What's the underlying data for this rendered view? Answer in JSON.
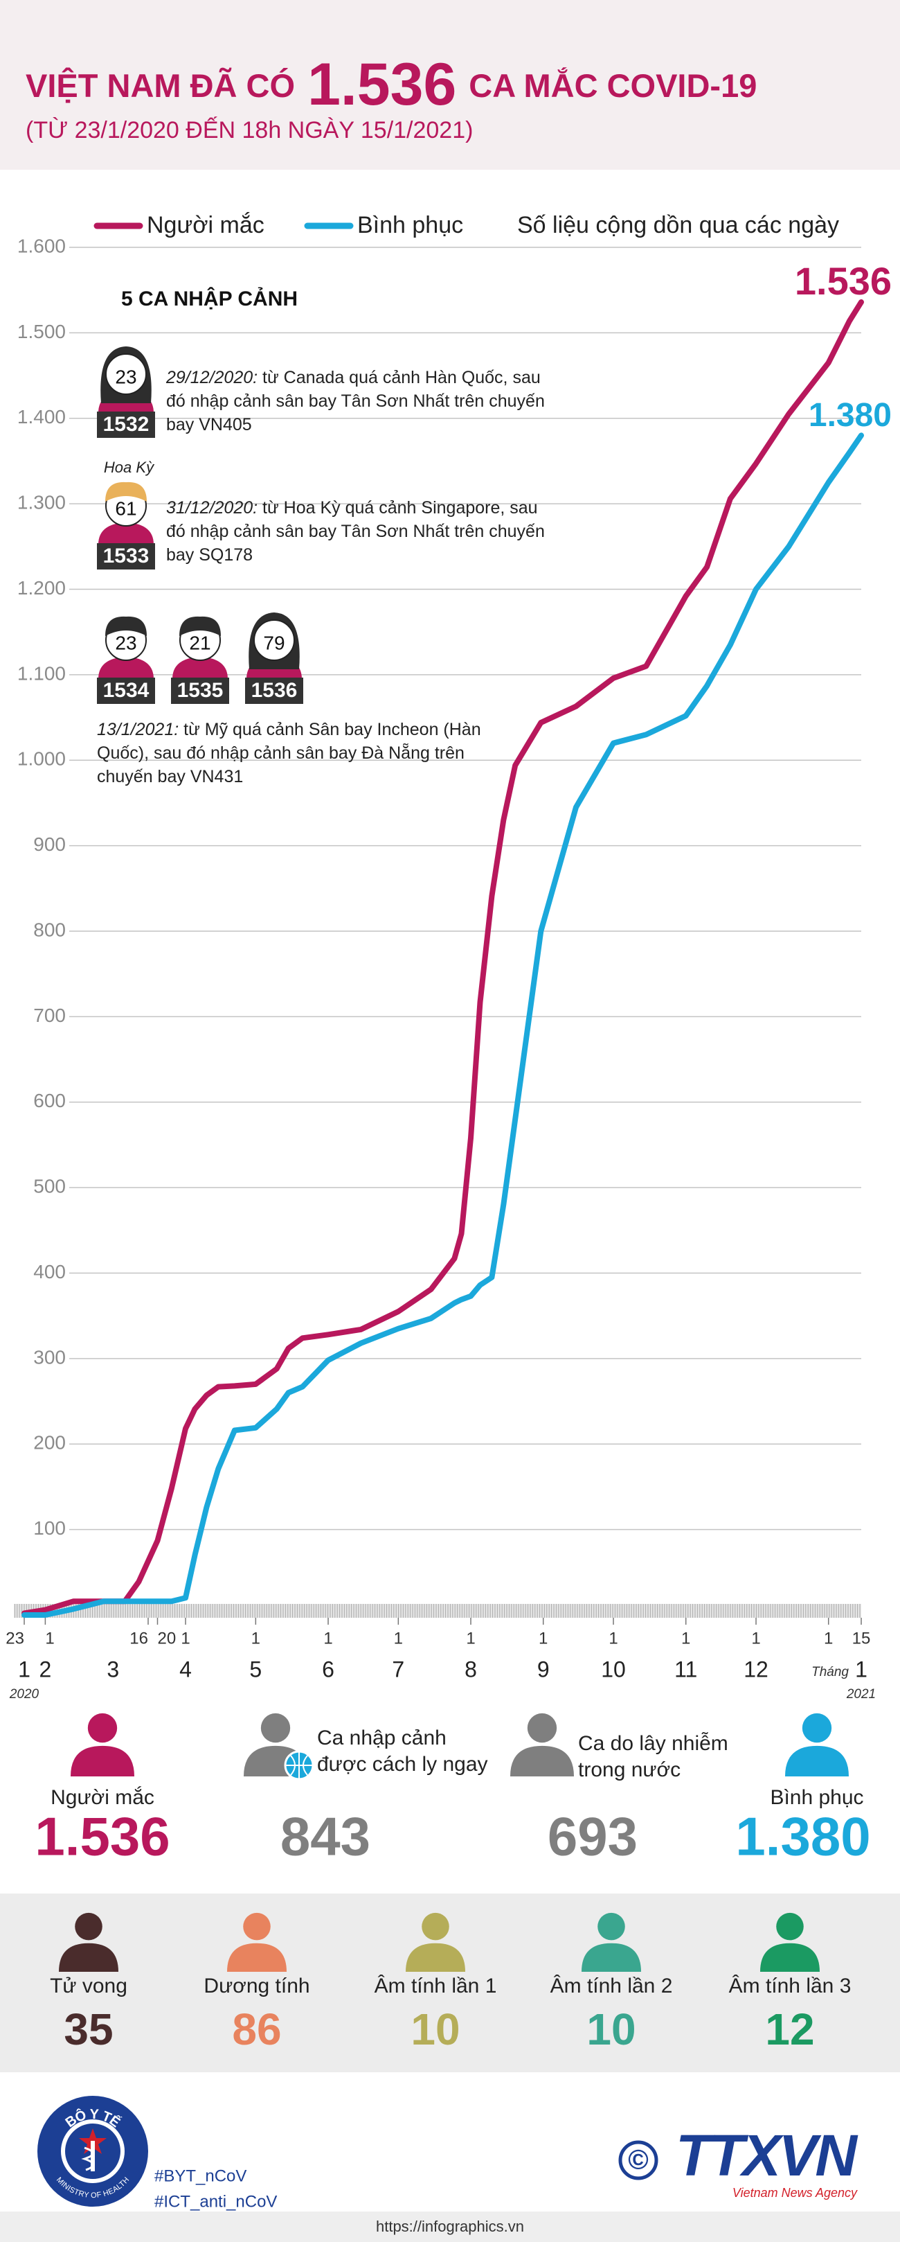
{
  "header": {
    "title_prefix": "VIỆT NAM ĐÃ CÓ",
    "title_number": "1.536",
    "title_suffix": "CA MẮC COVID-19",
    "subtitle": "(TỪ 23/1/2020 ĐẾN 18h NGÀY 15/1/2021)"
  },
  "chart_data": {
    "type": "line",
    "note": "Số liệu cộng dồn qua các ngày",
    "x": [
      "2020-01-23",
      "2020-02-01",
      "2020-02-13",
      "2020-02-26",
      "2020-03-06",
      "2020-03-12",
      "2020-03-20",
      "2020-03-26",
      "2020-04-01",
      "2020-04-05",
      "2020-04-10",
      "2020-04-15",
      "2020-04-22",
      "2020-05-01",
      "2020-05-10",
      "2020-05-15",
      "2020-05-21",
      "2020-06-01",
      "2020-06-15",
      "2020-07-01",
      "2020-07-15",
      "2020-07-25",
      "2020-07-28",
      "2020-08-01",
      "2020-08-05",
      "2020-08-10",
      "2020-08-15",
      "2020-08-20",
      "2020-08-31",
      "2020-09-15",
      "2020-10-01",
      "2020-10-15",
      "2020-11-01",
      "2020-11-10",
      "2020-11-20",
      "2020-12-01",
      "2020-12-15",
      "2021-01-01",
      "2021-01-10",
      "2021-01-15"
    ],
    "series": [
      {
        "name": "Người mắc",
        "color": "#b8185c",
        "values": [
          2,
          6,
          16,
          16,
          16,
          39,
          87,
          148,
          218,
          241,
          257,
          267,
          268,
          270,
          288,
          312,
          324,
          328,
          334,
          355,
          381,
          417,
          446,
          558,
          717,
          841,
          930,
          994,
          1044,
          1063,
          1096,
          1110,
          1192,
          1226,
          1306,
          1347,
          1405,
          1465,
          1514,
          1536
        ],
        "value_labels": [
          null,
          null,
          null,
          null,
          null,
          null,
          null,
          null,
          null,
          null,
          null,
          null,
          null,
          null,
          null,
          null,
          null,
          null,
          null,
          null,
          null,
          null,
          null,
          null,
          null,
          null,
          null,
          null,
          null,
          null,
          null,
          null,
          null,
          null,
          null,
          null,
          null,
          null,
          null,
          "1.536"
        ]
      },
      {
        "name": "Bình phục",
        "color": "#1ba8db",
        "values": [
          0,
          0,
          7,
          16,
          16,
          16,
          16,
          16,
          20,
          70,
          126,
          171,
          216,
          219,
          241,
          260,
          267,
          298,
          318,
          335,
          347,
          365,
          369,
          373,
          386,
          395,
          480,
          580,
          800,
          945,
          1020,
          1030,
          1052,
          1087,
          1135,
          1200,
          1250,
          1325,
          1360,
          1380
        ],
        "value_labels": [
          null,
          null,
          null,
          null,
          null,
          null,
          null,
          null,
          null,
          null,
          null,
          null,
          null,
          null,
          null,
          null,
          null,
          null,
          null,
          null,
          null,
          null,
          null,
          null,
          null,
          null,
          null,
          null,
          null,
          null,
          null,
          null,
          null,
          null,
          null,
          null,
          null,
          null,
          null,
          "1.380"
        ]
      }
    ],
    "xlim": [
      "2020-01-23",
      "2021-01-15"
    ],
    "xticks": [
      {
        "value": "2020-01-23",
        "label": "23"
      },
      {
        "value": "2020-02-01",
        "label": "1"
      },
      {
        "value": "2020-03-16",
        "label": "16"
      },
      {
        "value": "2020-03-20",
        "label": "20"
      },
      {
        "value": "2020-04-01",
        "label": "1"
      },
      {
        "value": "2020-05-01",
        "label": "1"
      },
      {
        "value": "2020-06-01",
        "label": "1"
      },
      {
        "value": "2020-07-01",
        "label": "1"
      },
      {
        "value": "2020-08-01",
        "label": "1"
      },
      {
        "value": "2020-09-01",
        "label": "1"
      },
      {
        "value": "2020-10-01",
        "label": "1"
      },
      {
        "value": "2020-11-01",
        "label": "1"
      },
      {
        "value": "2020-12-01",
        "label": "1"
      },
      {
        "value": "2021-01-01",
        "label": "1"
      },
      {
        "value": "2021-01-15",
        "label": "15"
      }
    ],
    "month_labels": [
      {
        "value": "2020-01-23",
        "label": "1"
      },
      {
        "value": "2020-02-01",
        "label": "2"
      },
      {
        "value": "2020-03-01",
        "label": "3"
      },
      {
        "value": "2020-04-01",
        "label": "4"
      },
      {
        "value": "2020-05-01",
        "label": "5"
      },
      {
        "value": "2020-06-01",
        "label": "6"
      },
      {
        "value": "2020-07-01",
        "label": "7"
      },
      {
        "value": "2020-08-01",
        "label": "8"
      },
      {
        "value": "2020-09-01",
        "label": "9"
      },
      {
        "value": "2020-10-01",
        "label": "10"
      },
      {
        "value": "2020-11-01",
        "label": "11"
      },
      {
        "value": "2020-12-01",
        "label": "12"
      },
      {
        "value": "2021-01-15",
        "label": "1"
      }
    ],
    "month_word": "Tháng",
    "year_labels": [
      {
        "value": "2020-01-23",
        "label": "2020"
      },
      {
        "value": "2021-01-15",
        "label": "2021"
      }
    ],
    "ylim": [
      0,
      1600
    ],
    "yticks": [
      100,
      200,
      300,
      400,
      500,
      600,
      700,
      800,
      900,
      {
        "value": 1000,
        "label": "1.000"
      },
      {
        "value": 1100,
        "label": "1.100"
      },
      {
        "value": 1200,
        "label": "1.200"
      },
      {
        "value": 1300,
        "label": "1.300"
      },
      {
        "value": 1400,
        "label": "1.400"
      },
      {
        "value": 1500,
        "label": "1.500"
      },
      {
        "value": 1600,
        "label": "1.600"
      }
    ],
    "grid": true
  },
  "imported": {
    "title": "5 CA NHẬP CẢNH",
    "cases": [
      {
        "patients": [
          {
            "id": "1532",
            "age": "23"
          }
        ],
        "date": "29/12/2020:",
        "text": "từ Canada quá cảnh Hàn Quốc, sau đó nhập cảnh sân bay Tân Sơn Nhất trên chuyến bay VN405"
      },
      {
        "patients": [
          {
            "id": "1533",
            "age": "61",
            "note": "Hoa Kỳ"
          }
        ],
        "date": "31/12/2020:",
        "text": "từ Hoa Kỳ quá cảnh Singapore, sau đó nhập cảnh sân bay Tân Sơn Nhất trên chuyến bay SQ178"
      },
      {
        "patients": [
          {
            "id": "1534",
            "age": "23"
          },
          {
            "id": "1535",
            "age": "21"
          },
          {
            "id": "1536",
            "age": "79"
          }
        ],
        "date": "13/1/2021:",
        "text": "từ Mỹ quá cảnh Sân bay Incheon (Hàn Quốc), sau đó nhập cảnh sân bay Đà Nẵng trên chuyến bay VN431"
      }
    ]
  },
  "summary": [
    {
      "label": "Người mắc",
      "value": "1.536"
    },
    {
      "label": "Ca nhập cảnh được cách ly ngay",
      "value": "843"
    },
    {
      "label": "Ca do lây nhiễm trong nước",
      "value": "693"
    },
    {
      "label": "Bình phục",
      "value": "1.380"
    }
  ],
  "outcomes": [
    {
      "label": "Tử vong",
      "value": "35"
    },
    {
      "label": "Dương tính",
      "value": "86"
    },
    {
      "label": "Âm tính lần 1",
      "value": "10"
    },
    {
      "label": "Âm tính lần 2",
      "value": "10"
    },
    {
      "label": "Âm tính lần 3",
      "value": "12"
    }
  ],
  "footer": {
    "moh_vi": "BỘ Y TẾ",
    "moh_en": "MINISTRY OF HEALTH",
    "hashtags": [
      "#BYT_nCoV",
      "#ICT_anti_nCoV"
    ],
    "copyright": "©",
    "agency_logo": "TTXVN",
    "agency_name": "Vietnam News Agency",
    "website": "https://infographics.vn"
  }
}
